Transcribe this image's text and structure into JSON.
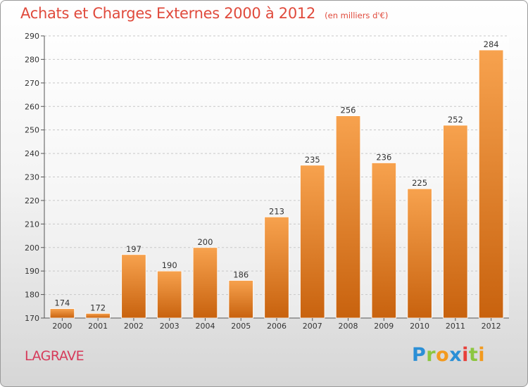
{
  "header": {
    "title": "Achats et Charges Externes 2000 à 2012",
    "unit": "(en milliers d'€)"
  },
  "footer": {
    "commune": "LAGRAVE",
    "logo_letters": [
      {
        "char": "P",
        "color": "#2b8fd6"
      },
      {
        "char": "r",
        "color": "#8cc63f"
      },
      {
        "char": "o",
        "color": "#f39a1e"
      },
      {
        "char": "x",
        "color": "#2b8fd6"
      },
      {
        "char": "i",
        "color": "#e8403a"
      },
      {
        "char": "t",
        "color": "#8cc63f"
      },
      {
        "char": "i",
        "color": "#f39a1e"
      }
    ]
  },
  "colors": {
    "bar_top": "#f7a24e",
    "bar_bottom": "#c8620e",
    "title": "#e04a3c",
    "commune": "#d63a5a"
  },
  "chart_data": {
    "type": "bar",
    "title": "Achats et Charges Externes 2000 à 2012",
    "subtitle": "(en milliers d'€)",
    "categories": [
      "2000",
      "2001",
      "2002",
      "2003",
      "2004",
      "2005",
      "2006",
      "2007",
      "2008",
      "2009",
      "2010",
      "2011",
      "2012"
    ],
    "values": [
      174,
      172,
      197,
      190,
      200,
      186,
      213,
      235,
      256,
      236,
      225,
      252,
      284
    ],
    "ylim": [
      170,
      290
    ],
    "yticks": [
      170,
      180,
      190,
      200,
      210,
      220,
      230,
      240,
      250,
      260,
      270,
      280,
      290
    ],
    "grid": true,
    "data_labels": true
  }
}
